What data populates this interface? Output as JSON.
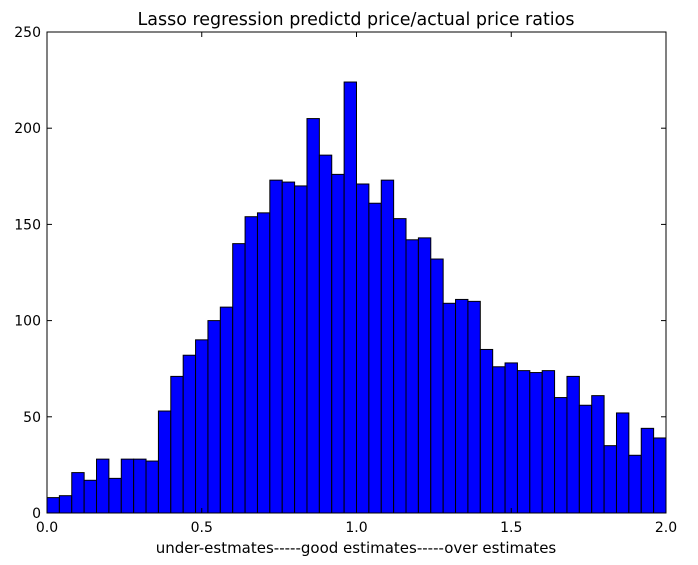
{
  "chart_data": {
    "type": "bar",
    "title": "Lasso regression predictd price/actual price ratios",
    "xlabel": "under-estmates-----good estimates-----over estimates",
    "ylabel": "",
    "xlim": [
      0.0,
      2.0
    ],
    "ylim": [
      0,
      250
    ],
    "bin_width": 0.04,
    "x_ticks": [
      "0.0",
      "0.5",
      "1.0",
      "1.5",
      "2.0"
    ],
    "x_tick_values": [
      0.0,
      0.5,
      1.0,
      1.5,
      2.0
    ],
    "y_ticks": [
      "0",
      "50",
      "100",
      "150",
      "200",
      "250"
    ],
    "y_tick_values": [
      0,
      50,
      100,
      150,
      200,
      250
    ],
    "bar_color": "#0000ff",
    "edge_color": "#000000",
    "grid": false,
    "values": [
      8,
      9,
      21,
      17,
      28,
      18,
      28,
      28,
      27,
      53,
      71,
      82,
      90,
      100,
      107,
      140,
      154,
      156,
      173,
      172,
      170,
      205,
      186,
      176,
      224,
      171,
      161,
      173,
      153,
      142,
      143,
      132,
      109,
      111,
      110,
      85,
      76,
      78,
      74,
      73,
      74,
      60,
      71,
      56,
      61,
      35,
      52,
      30,
      44,
      39
    ]
  }
}
